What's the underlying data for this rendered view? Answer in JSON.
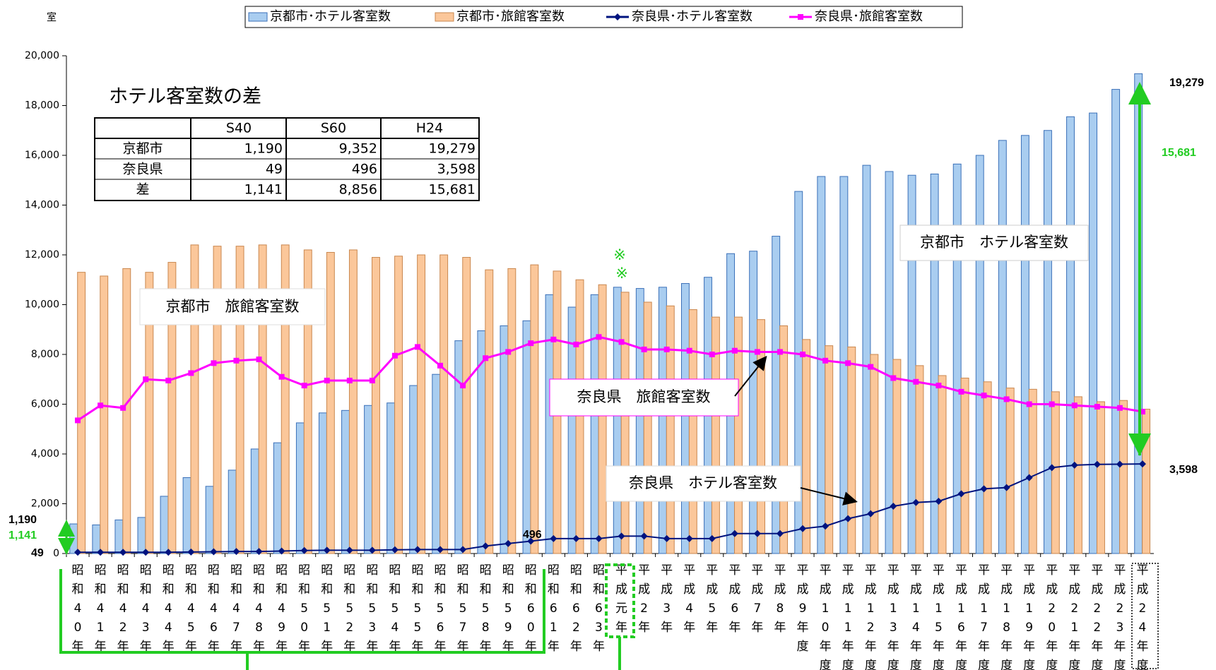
{
  "chart_data": {
    "type": "bar",
    "unit_label": "室",
    "categories": [
      "昭和40年",
      "昭和41年",
      "昭和42年",
      "昭和43年",
      "昭和44年",
      "昭和45年",
      "昭和46年",
      "昭和47年",
      "昭和48年",
      "昭和49年",
      "昭和50年",
      "昭和51年",
      "昭和52年",
      "昭和53年",
      "昭和54年",
      "昭和55年",
      "昭和56年",
      "昭和57年",
      "昭和58年",
      "昭和59年",
      "昭和60年",
      "昭和61年",
      "昭和62年",
      "昭和63年",
      "平成元年",
      "平成2年",
      "平成3年",
      "平成4年",
      "平成5年",
      "平成6年",
      "平成7年",
      "平成8年",
      "平成9年度",
      "平成10年度",
      "平成11年度",
      "平成12年度",
      "平成13年度",
      "平成14年度",
      "平成15年度",
      "平成16年度",
      "平成17年度",
      "平成18年度",
      "平成19年度",
      "平成20年度",
      "平成21年度",
      "平成22年度",
      "平成23年度",
      "平成24年度"
    ],
    "series": [
      {
        "name": "京都市･ホテル客室数",
        "type": "bar",
        "color": "#a9cdf0",
        "stroke": "#3b70b8",
        "values": [
          1190,
          1150,
          1350,
          1450,
          2300,
          3050,
          2700,
          3350,
          4200,
          4450,
          5250,
          5650,
          5750,
          5950,
          6050,
          6750,
          7200,
          8550,
          8950,
          9150,
          9352,
          10400,
          9900,
          10400,
          10700,
          10650,
          10700,
          10850,
          11100,
          12050,
          12150,
          12750,
          14550,
          15150,
          15150,
          15600,
          15350,
          15200,
          15250,
          15650,
          16000,
          16600,
          16800,
          17000,
          17550,
          17700,
          18650,
          19279
        ]
      },
      {
        "name": "京都市･旅館客室数",
        "type": "bar",
        "color": "#fbc79a",
        "stroke": "#c9874f",
        "values": [
          11300,
          11150,
          11450,
          11300,
          11700,
          12400,
          12350,
          12350,
          12400,
          12400,
          12200,
          12100,
          12200,
          11900,
          11950,
          12000,
          12000,
          11900,
          11400,
          11450,
          11600,
          11350,
          11000,
          10800,
          10500,
          10100,
          9950,
          9800,
          9500,
          9500,
          9400,
          9150,
          8600,
          8350,
          8300,
          8000,
          7800,
          7550,
          7150,
          7050,
          6900,
          6650,
          6600,
          6500,
          6300,
          6100,
          6150,
          5800
        ]
      },
      {
        "name": "奈良県･ホテル客室数",
        "type": "line",
        "marker": "diamond",
        "color": "#00137f",
        "values": [
          49,
          50,
          50,
          50,
          50,
          60,
          70,
          80,
          80,
          100,
          120,
          130,
          130,
          130,
          150,
          160,
          160,
          160,
          300,
          400,
          496,
          600,
          600,
          600,
          700,
          700,
          600,
          600,
          600,
          800,
          800,
          800,
          1000,
          1100,
          1400,
          1600,
          1900,
          2050,
          2100,
          2400,
          2600,
          2650,
          3050,
          3450,
          3550,
          3580,
          3590,
          3598
        ]
      },
      {
        "name": "奈良県･旅館客室数",
        "type": "line",
        "marker": "square",
        "color": "#ff00ff",
        "values": [
          5350,
          5950,
          5850,
          7000,
          6950,
          7250,
          7650,
          7750,
          7800,
          7100,
          6750,
          6950,
          6950,
          6950,
          7950,
          8300,
          7550,
          6750,
          7850,
          8100,
          8450,
          8600,
          8400,
          8700,
          8500,
          8200,
          8200,
          8150,
          8000,
          8150,
          8100,
          8100,
          8000,
          7750,
          7650,
          7500,
          7050,
          6900,
          6750,
          6500,
          6350,
          6200,
          6000,
          6000,
          5950,
          5900,
          5850,
          5700
        ]
      }
    ],
    "ylim": [
      0,
      20000
    ],
    "yticks": [
      0,
      {
        "value": 2000,
        "label": "2,000"
      },
      {
        "value": 4000,
        "label": "4,000"
      },
      {
        "value": 6000,
        "label": "6,000"
      },
      {
        "value": 8000,
        "label": "8,000"
      },
      {
        "value": 10000,
        "label": "10,000"
      },
      {
        "value": 12000,
        "label": "12,000"
      },
      {
        "value": 14000,
        "label": "14,000"
      },
      {
        "value": 16000,
        "label": "16,000"
      },
      {
        "value": 18000,
        "label": "18,000"
      },
      {
        "value": 20000,
        "label": "20,000"
      }
    ],
    "legend": "top",
    "table": {
      "title": "ホテル客室数の差",
      "header": [
        "S40",
        "S60",
        "H24"
      ],
      "rows": [
        [
          "京都市",
          "1,190",
          "9,352",
          "19,279"
        ],
        [
          "奈良県",
          "49",
          "496",
          "3,598"
        ],
        [
          "差",
          "1,141",
          "8,856",
          "15,681"
        ]
      ]
    },
    "annotations": [
      "京都市　ホテル客室数",
      "京都市　旅館客室数",
      "奈良県　旅館客室数",
      "奈良県　ホテル客室数",
      "※",
      "※",
      "19,279",
      "15,681",
      "3,598",
      "1,190",
      "1,141",
      "49",
      "496"
    ]
  }
}
